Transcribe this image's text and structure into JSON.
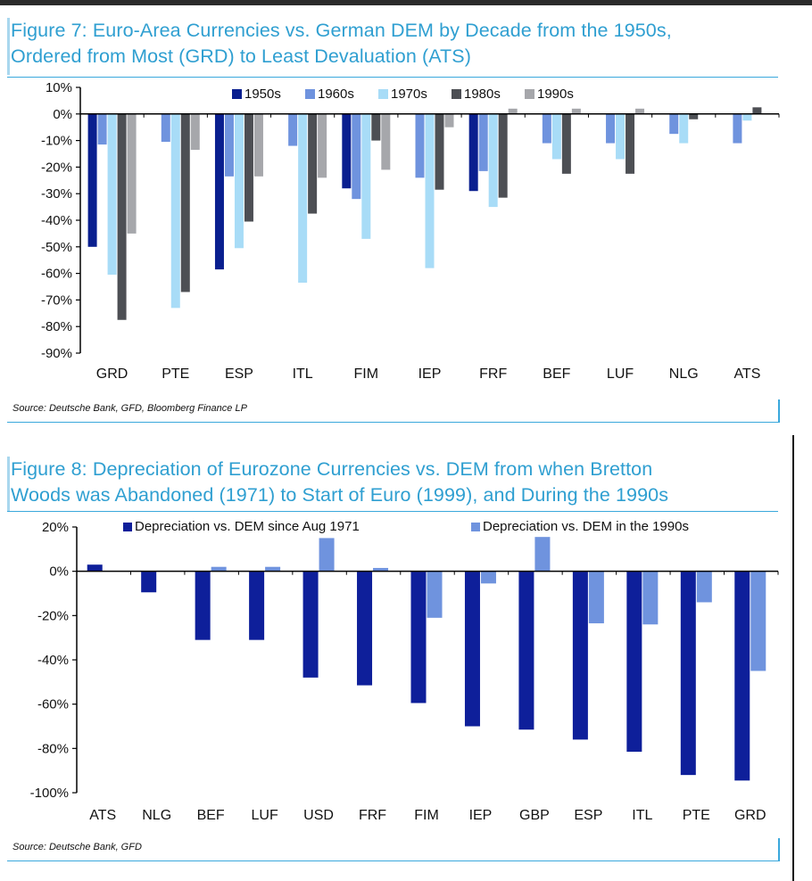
{
  "figure7": {
    "title_line1": "Figure 7: Euro-Area Currencies vs. German DEM by Decade from the 1950s,",
    "title_line2": "Ordered from Most (GRD) to Least Devaluation (ATS)",
    "source": "Source: Deutsche Bank, GFD, Bloomberg Finance LP"
  },
  "figure8": {
    "title_line1": "Figure 8: Depreciation of Eurozone Currencies vs. DEM from when Bretton",
    "title_line2": "Woods was Abandoned (1971) to Start of Euro (1999), and During the 1990s",
    "source": "Source: Deutsche Bank, GFD"
  },
  "chart_data": [
    {
      "type": "bar",
      "title": "Figure 7: Euro-Area Currencies vs. German DEM by Decade from the 1950s, Ordered from Most (GRD) to Least Devaluation (ATS)",
      "categories": [
        "GRD",
        "PTE",
        "ESP",
        "ITL",
        "FIM",
        "IEP",
        "FRF",
        "BEF",
        "LUF",
        "NLG",
        "ATS"
      ],
      "ylim": [
        -90,
        10
      ],
      "yticks": [
        10,
        0,
        -10,
        -20,
        -30,
        -40,
        -50,
        -60,
        -70,
        -80,
        -90
      ],
      "ytick_labels": [
        "10%",
        "0%",
        "-10%",
        "-20%",
        "-30%",
        "-40%",
        "-50%",
        "-60%",
        "-70%",
        "-80%",
        "-90%"
      ],
      "legend_position": "top",
      "series": [
        {
          "name": "1950s",
          "color": "#0a1f8f",
          "values": [
            -50,
            0,
            -58.5,
            0,
            -28,
            0,
            -29,
            0,
            0,
            0,
            0
          ]
        },
        {
          "name": "1960s",
          "color": "#6f93de",
          "values": [
            -11.5,
            -10.5,
            -23.5,
            -12,
            -32,
            -24,
            -21.5,
            -11,
            -11,
            -7.5,
            -11
          ]
        },
        {
          "name": "1970s",
          "color": "#a8dcf7",
          "values": [
            -60.5,
            -73,
            -50.5,
            -63.5,
            -47,
            -58,
            -35,
            -17,
            -17,
            -11,
            -2.5
          ]
        },
        {
          "name": "1980s",
          "color": "#4d4f54",
          "values": [
            -77.5,
            -67,
            -40.5,
            -37.5,
            -10,
            -28.5,
            -31.5,
            -22.5,
            -22.5,
            -2,
            2.5
          ]
        },
        {
          "name": "1990s",
          "color": "#a6a7ab",
          "values": [
            -45,
            -13.5,
            -23.5,
            -24,
            -21,
            -5,
            2,
            2,
            2,
            0,
            0
          ]
        }
      ]
    },
    {
      "type": "bar",
      "title": "Figure 8: Depreciation of Eurozone Currencies vs. DEM from when Bretton Woods was Abandoned (1971) to Start of Euro (1999), and During the 1990s",
      "categories": [
        "ATS",
        "NLG",
        "BEF",
        "LUF",
        "USD",
        "FRF",
        "FIM",
        "IEP",
        "GBP",
        "ESP",
        "ITL",
        "PTE",
        "GRD"
      ],
      "ylim": [
        -100,
        20
      ],
      "yticks": [
        20,
        0,
        -20,
        -40,
        -60,
        -80,
        -100
      ],
      "ytick_labels": [
        "20%",
        "0%",
        "-20%",
        "-40%",
        "-60%",
        "-80%",
        "-100%"
      ],
      "legend_position": "top",
      "series": [
        {
          "name": "Depreciation vs. DEM since Aug 1971",
          "color": "#0e1f9a",
          "values": [
            3,
            -9.5,
            -31,
            -31,
            -48,
            -51.5,
            -59.5,
            -70,
            -71.5,
            -76,
            -81.5,
            -92,
            -94.5
          ]
        },
        {
          "name": "Depreciation vs. DEM in the 1990s",
          "color": "#6f93de",
          "values": [
            0,
            0,
            2,
            2,
            15,
            1.5,
            -21,
            -5.5,
            15.5,
            -23.5,
            -24,
            -14,
            -45
          ]
        }
      ]
    }
  ]
}
